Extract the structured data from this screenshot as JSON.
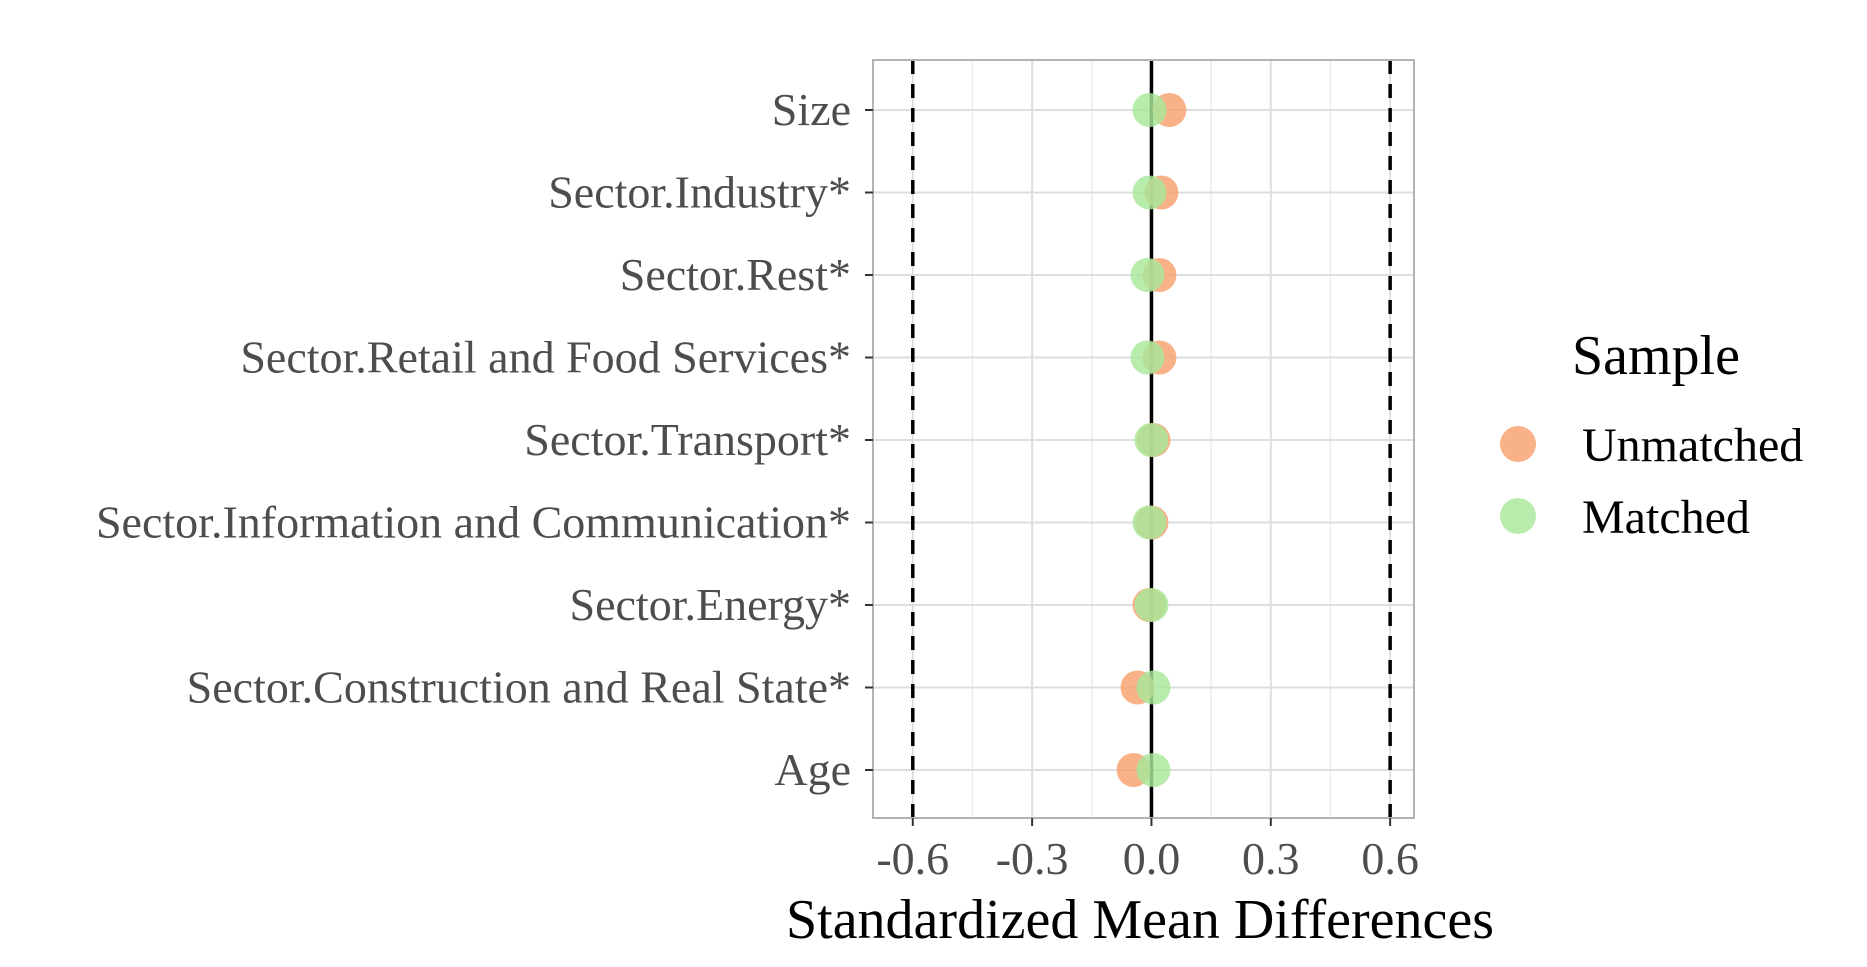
{
  "chart_data": {
    "type": "scatter",
    "xlabel": "Standardized Mean Differences",
    "ylabel": "",
    "xlim": [
      -0.7,
      0.66
    ],
    "x_ticks": [
      -0.6,
      -0.3,
      0.0,
      0.3,
      0.6
    ],
    "x_tick_labels": [
      "-0.6",
      "-0.3",
      "0.0",
      "0.3",
      "0.6"
    ],
    "thresholds": [
      -0.6,
      0.6
    ],
    "reference_line": 0.0,
    "grid": true,
    "legend_position": "right",
    "categories": [
      "Size",
      "Sector.Industry*",
      "Sector.Rest*",
      "Sector.Retail and Food Services*",
      "Sector.Transport*",
      "Sector.Information and Communication*",
      "Sector.Energy*",
      "Sector.Construction and Real State*",
      "Age"
    ],
    "legend_title": "Sample",
    "series": [
      {
        "name": "Unmatched",
        "color": "#F8A06C",
        "values": [
          0.045,
          0.025,
          0.02,
          0.02,
          0.005,
          0.0,
          -0.005,
          -0.035,
          -0.045
        ]
      },
      {
        "name": "Matched",
        "color": "#A8E89A",
        "values": [
          -0.005,
          -0.005,
          -0.01,
          -0.01,
          0.0,
          -0.005,
          0.0,
          0.005,
          0.005
        ]
      }
    ]
  }
}
